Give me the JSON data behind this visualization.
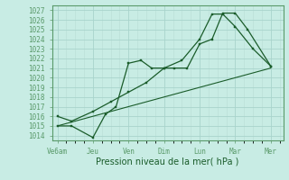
{
  "background_color": "#c8ece4",
  "grid_color_major": "#a8d4cc",
  "grid_color_minor": "#b8dcd4",
  "line_color": "#1a5c2a",
  "xlabel": "Pression niveau de la mer( hPa )",
  "xlabels": [
    "Ve6am",
    "Jeu",
    "Ven",
    "Dim",
    "Lun",
    "Mar",
    "Mer"
  ],
  "xtick_positions": [
    0,
    1,
    2,
    3,
    4,
    5,
    6
  ],
  "ylim": [
    1013.5,
    1027.5
  ],
  "yticks": [
    1014,
    1015,
    1016,
    1017,
    1018,
    1019,
    1020,
    1021,
    1022,
    1023,
    1024,
    1025,
    1026,
    1027
  ],
  "series1_x": [
    0,
    0.4,
    1.0,
    1.35,
    1.65,
    2.0,
    2.35,
    2.65,
    3.0,
    3.3,
    3.65,
    4.0,
    4.35,
    4.65,
    5.0,
    5.35,
    6.0
  ],
  "series1_y": [
    1015.0,
    1015.0,
    1013.8,
    1016.2,
    1017.0,
    1021.5,
    1021.8,
    1021.0,
    1021.0,
    1021.0,
    1021.0,
    1023.5,
    1024.0,
    1026.7,
    1026.7,
    1025.0,
    1021.2
  ],
  "series2_x": [
    0,
    0.4,
    1.0,
    1.5,
    2.0,
    2.5,
    3.0,
    3.5,
    4.0,
    4.35,
    4.65,
    5.0,
    5.5,
    6.0
  ],
  "series2_y": [
    1016.0,
    1015.5,
    1016.5,
    1017.5,
    1018.5,
    1019.5,
    1021.0,
    1021.8,
    1024.0,
    1026.6,
    1026.6,
    1025.3,
    1023.0,
    1021.2
  ],
  "series3_x": [
    0,
    6
  ],
  "series3_y": [
    1015.0,
    1021.0
  ]
}
